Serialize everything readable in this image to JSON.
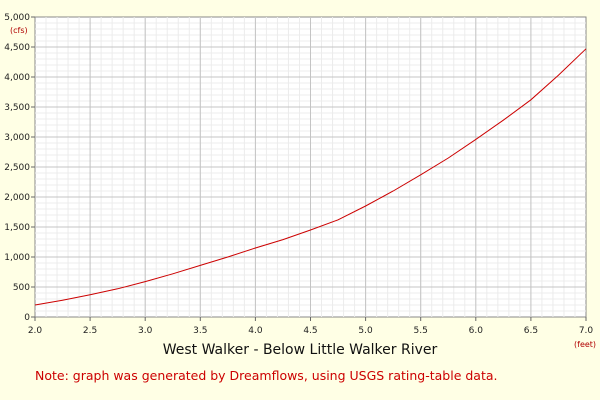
{
  "chart_data": {
    "type": "line",
    "title": "West Walker - Below Little Walker River",
    "note": "Note: graph was generated by Dreamflows, using USGS rating-table data.",
    "xlabel": "(feet)",
    "ylabel": "(cfs)",
    "xlim": [
      2.0,
      7.0
    ],
    "ylim": [
      0,
      5000
    ],
    "x_ticks": [
      2.0,
      2.5,
      3.0,
      3.5,
      4.0,
      4.5,
      5.0,
      5.5,
      6.0,
      6.5,
      7.0
    ],
    "x_tick_labels": [
      "2.0",
      "2.5",
      "3.0",
      "3.5",
      "4.0",
      "4.5",
      "5.0",
      "5.5",
      "6.0",
      "6.5",
      "7.0"
    ],
    "y_ticks": [
      0,
      500,
      1000,
      1500,
      2000,
      2500,
      3000,
      3500,
      4000,
      4500,
      5000
    ],
    "y_tick_labels": [
      "0",
      "500",
      "1,000",
      "1,500",
      "2,000",
      "2,500",
      "3,000",
      "3,500",
      "4,000",
      "4,500",
      "5,000"
    ],
    "grid": true,
    "line_color": "#cc0000",
    "series": [
      {
        "x": [
          2.0,
          2.25,
          2.5,
          2.75,
          3.0,
          3.25,
          3.5,
          3.75,
          4.0,
          4.25,
          4.5,
          4.75,
          5.0,
          5.25,
          5.5,
          5.75,
          6.0,
          6.25,
          6.5,
          6.75,
          7.0
        ],
        "values": [
          200,
          280,
          370,
          470,
          590,
          720,
          860,
          1000,
          1150,
          1290,
          1450,
          1620,
          1850,
          2100,
          2370,
          2650,
          2960,
          3280,
          3620,
          4030,
          4470
        ]
      }
    ]
  }
}
